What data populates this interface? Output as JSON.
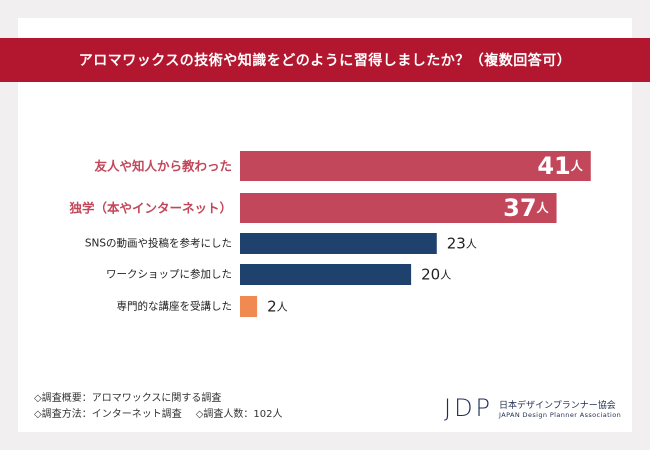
{
  "title": "アロマワックスの技術や知識をどのように習得しましたか？（複数回答可）",
  "chart_data": {
    "type": "bar",
    "orientation": "horizontal",
    "categories": [
      "友人や知人から教わった",
      "独学（本やインターネット）",
      "SNSの動画や投稿を参考にした",
      "ワークショップに参加した",
      "専門的な講座を受講した"
    ],
    "values": [
      41,
      37,
      23,
      20,
      2
    ],
    "unit": "人",
    "colors": [
      "#c2475a",
      "#c2475a",
      "#1e416e",
      "#1e416e",
      "#f08a50"
    ],
    "label_colors": [
      "#c2475a",
      "#c2475a",
      "#222222",
      "#222222",
      "#222222"
    ],
    "value_label_style": [
      "inside-large",
      "inside-large",
      "outside",
      "outside",
      "outside"
    ],
    "xlim": [
      0,
      45
    ]
  },
  "notes": {
    "line1": "◇調査概要：アロマワックスに関する調査",
    "line2a": "◇調査方法：インターネット調査",
    "line2b": "◇調査人数：102人"
  },
  "logo": {
    "mark": "JDP",
    "jp": "日本デザインプランナー協会",
    "en": "JAPAN Design Planner Association"
  }
}
